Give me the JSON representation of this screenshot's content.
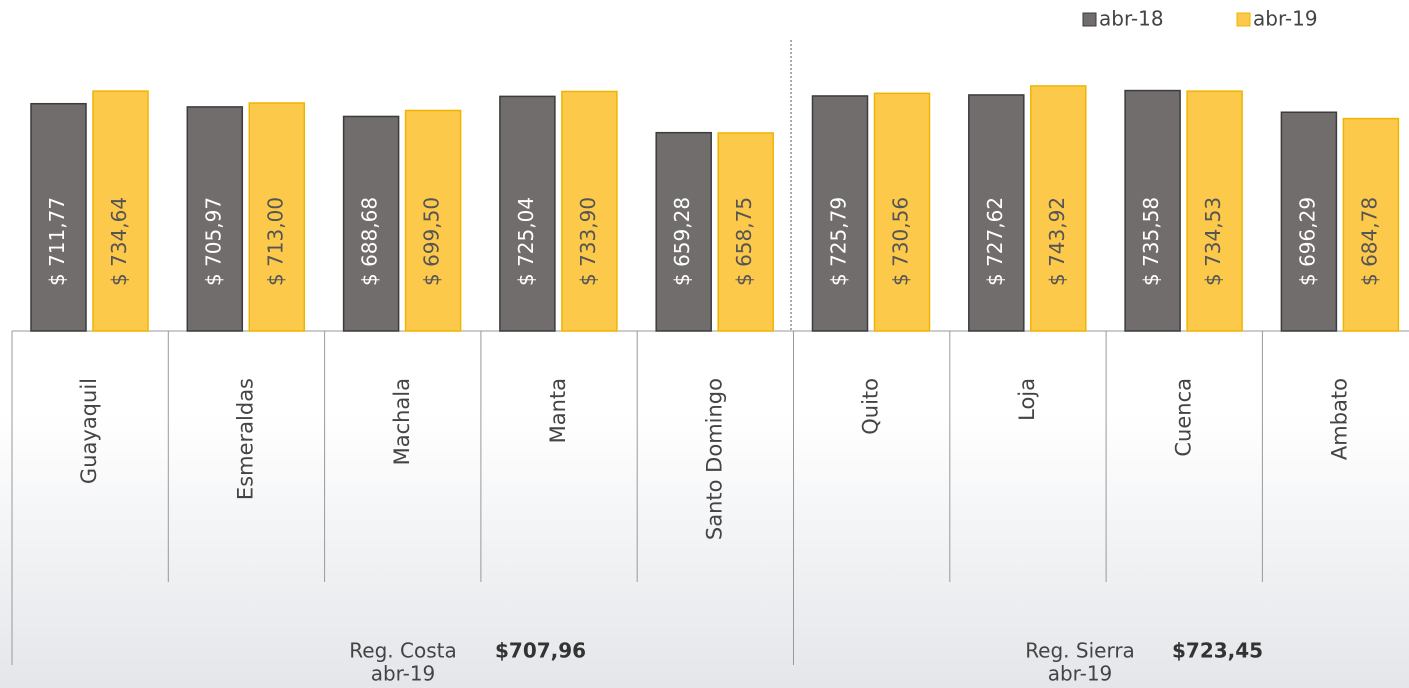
{
  "chart_data": {
    "type": "bar",
    "categories": [
      "Guayaquil",
      "Esmeraldas",
      "Machala",
      "Manta",
      "Santo Domingo",
      "Quito",
      "Loja",
      "Cuenca",
      "Ambato"
    ],
    "series": [
      {
        "name": "abr-18",
        "color": "#716d6c",
        "values": [
          711.77,
          705.97,
          688.68,
          725.04,
          659.28,
          725.79,
          727.62,
          735.58,
          696.29
        ],
        "value_labels": [
          "$ 711,77",
          "$ 705,97",
          "$ 688,68",
          "$ 725,04",
          "$ 659,28",
          "$ 725,79",
          "$ 727,62",
          "$ 735,58",
          "$ 696,29"
        ]
      },
      {
        "name": "abr-19",
        "color": "#fdc94b",
        "values": [
          734.64,
          713.0,
          699.5,
          733.9,
          658.75,
          730.56,
          743.92,
          734.53,
          684.78
        ],
        "value_labels": [
          "$ 734,64",
          "$ 713,00",
          "$ 699,50",
          "$ 733,90",
          "$ 658,75",
          "$ 730,56",
          "$ 743,92",
          "$ 734,53",
          "$ 684,78"
        ]
      }
    ],
    "ylim": [
      300,
      800
    ],
    "legend": "top-right",
    "groups": [
      {
        "label": "Reg. Costa",
        "period": "abr-19",
        "average": "$707,96"
      },
      {
        "label": "Reg. Sierra",
        "period": "abr-19",
        "average": "$723,45"
      }
    ]
  }
}
